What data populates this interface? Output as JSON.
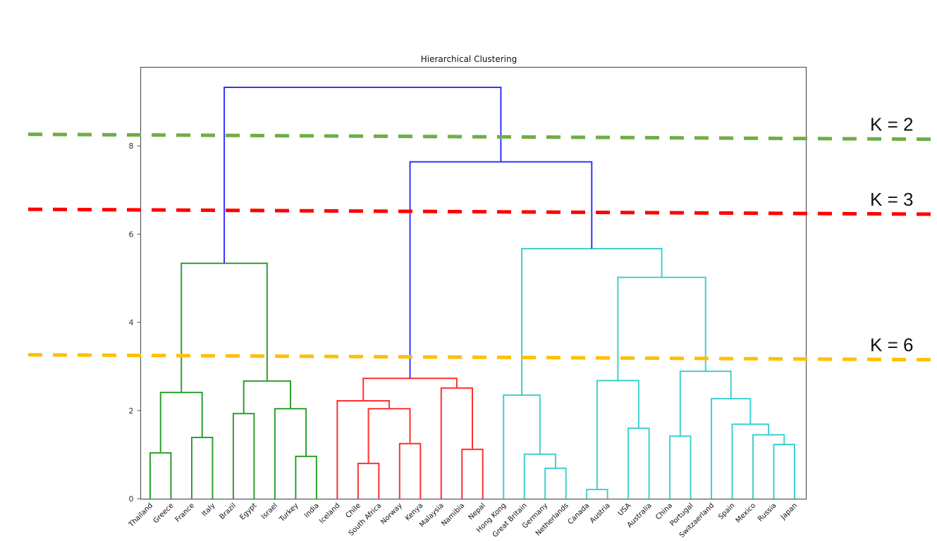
{
  "chart_data": {
    "type": "dendrogram",
    "title": "Hierarchical Clustering",
    "xlabel": "",
    "ylabel": "",
    "ylim": [
      0,
      9.8
    ],
    "yticks": [
      0,
      2,
      4,
      6,
      8
    ],
    "grid": false,
    "leaves": [
      "Thailand",
      "Greece",
      "France",
      "Italy",
      "Brazil",
      "Egypt",
      "Israel",
      "Turkey",
      "India",
      "Iceland",
      "Chile",
      "South Africa",
      "Norway",
      "Kenya",
      "Malaysia",
      "Namibia",
      "Nepal",
      "Hong Kong",
      "Great Britain",
      "Germany",
      "Netherlands",
      "Canada",
      "Austria",
      "USA",
      "Australia",
      "China",
      "Portugal",
      "Switzaerland",
      "Spain",
      "Mexico",
      "Russia",
      "Japan"
    ],
    "colors": {
      "green": "#2ca02c",
      "red": "#ff3030",
      "cyan": "#3fd0d0",
      "blue": "#3333ff"
    },
    "merges": [
      {
        "id": "m1",
        "left": "Thailand",
        "right": "Greece",
        "height": 1.04,
        "color": "green"
      },
      {
        "id": "m2",
        "left": "France",
        "right": "Italy",
        "height": 1.39,
        "color": "green"
      },
      {
        "id": "m3",
        "left": "m1",
        "right": "m2",
        "height": 2.41,
        "color": "green"
      },
      {
        "id": "m4",
        "left": "Brazil",
        "right": "Egypt",
        "height": 1.93,
        "color": "green"
      },
      {
        "id": "m5",
        "left": "Turkey",
        "right": "India",
        "height": 0.96,
        "color": "green"
      },
      {
        "id": "m6",
        "left": "Israel",
        "right": "m5",
        "height": 2.04,
        "color": "green"
      },
      {
        "id": "m7",
        "left": "m4",
        "right": "m6",
        "height": 2.67,
        "color": "green"
      },
      {
        "id": "m8",
        "left": "m3",
        "right": "m7",
        "height": 5.34,
        "color": "green"
      },
      {
        "id": "m9",
        "left": "Chile",
        "right": "South Africa",
        "height": 0.8,
        "color": "red"
      },
      {
        "id": "m10",
        "left": "Norway",
        "right": "Kenya",
        "height": 1.25,
        "color": "red"
      },
      {
        "id": "m11",
        "left": "m9",
        "right": "m10",
        "height": 2.04,
        "color": "red"
      },
      {
        "id": "m12",
        "left": "Iceland",
        "right": "m11",
        "height": 2.22,
        "color": "red"
      },
      {
        "id": "m13",
        "left": "Namibia",
        "right": "Nepal",
        "height": 1.12,
        "color": "red"
      },
      {
        "id": "m14",
        "left": "Malaysia",
        "right": "m13",
        "height": 2.51,
        "color": "red"
      },
      {
        "id": "m15",
        "left": "m12",
        "right": "m14",
        "height": 2.73,
        "color": "red"
      },
      {
        "id": "m16",
        "left": "Germany",
        "right": "Netherlands",
        "height": 0.69,
        "color": "cyan"
      },
      {
        "id": "m17",
        "left": "Great Britain",
        "right": "m16",
        "height": 1.01,
        "color": "cyan"
      },
      {
        "id": "m18",
        "left": "Hong Kong",
        "right": "m17",
        "height": 2.35,
        "color": "cyan"
      },
      {
        "id": "m19",
        "left": "Canada",
        "right": "Austria",
        "height": 0.21,
        "color": "cyan"
      },
      {
        "id": "m20",
        "left": "USA",
        "right": "Australia",
        "height": 1.6,
        "color": "cyan"
      },
      {
        "id": "m21",
        "left": "m19",
        "right": "m20",
        "height": 2.68,
        "color": "cyan"
      },
      {
        "id": "m22",
        "left": "China",
        "right": "Portugal",
        "height": 1.42,
        "color": "cyan"
      },
      {
        "id": "m23",
        "left": "Russia",
        "right": "Japan",
        "height": 1.23,
        "color": "cyan"
      },
      {
        "id": "m24",
        "left": "Mexico",
        "right": "m23",
        "height": 1.45,
        "color": "cyan"
      },
      {
        "id": "m25",
        "left": "Spain",
        "right": "m24",
        "height": 1.69,
        "color": "cyan"
      },
      {
        "id": "m26",
        "left": "Switzaerland",
        "right": "m25",
        "height": 2.27,
        "color": "cyan"
      },
      {
        "id": "m27",
        "left": "m22",
        "right": "m26",
        "height": 2.89,
        "color": "cyan"
      },
      {
        "id": "m28",
        "left": "m21",
        "right": "m27",
        "height": 5.02,
        "color": "cyan"
      },
      {
        "id": "m29",
        "left": "m18",
        "right": "m28",
        "height": 5.67,
        "color": "cyan"
      },
      {
        "id": "m30",
        "left": "m15",
        "right": "m29",
        "height": 7.64,
        "color": "blue"
      },
      {
        "id": "m31",
        "left": "m8",
        "right": "m30",
        "height": 9.33,
        "color": "blue"
      }
    ],
    "cut_lines": [
      {
        "label": "K = 2",
        "height": 8.2,
        "color": "#70ad47"
      },
      {
        "label": "K = 3",
        "height": 6.5,
        "color": "#ff0000"
      },
      {
        "label": "K = 6",
        "height": 3.2,
        "color": "#ffc000"
      }
    ]
  }
}
